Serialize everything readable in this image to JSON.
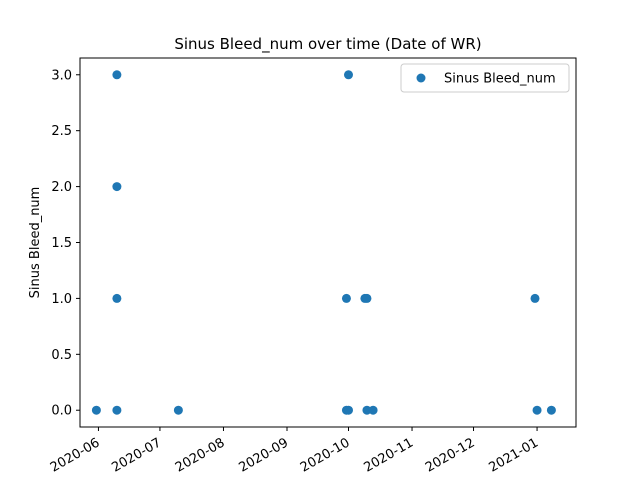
{
  "chart_data": {
    "type": "scatter",
    "title": "Sinus Bleed_num over time (Date of WR)",
    "xlabel": "",
    "ylabel": "Sinus Bleed_num",
    "x_axis_type": "date",
    "xlim": [
      "2020-05-23",
      "2021-01-20"
    ],
    "ylim": [
      -0.15,
      3.15
    ],
    "x_ticks": [
      "2020-06-01",
      "2020-07-01",
      "2020-08-01",
      "2020-09-01",
      "2020-10-01",
      "2020-11-01",
      "2020-12-01",
      "2021-01-01"
    ],
    "x_tick_labels": [
      "2020-06",
      "2020-07",
      "2020-08",
      "2020-09",
      "2020-10",
      "2020-11",
      "2020-12",
      "2021-01"
    ],
    "y_ticks": [
      0.0,
      0.5,
      1.0,
      1.5,
      2.0,
      2.5,
      3.0
    ],
    "y_tick_labels": [
      "0.0",
      "0.5",
      "1.0",
      "1.5",
      "2.0",
      "2.5",
      "3.0"
    ],
    "grid": false,
    "legend_position": "top-right",
    "color": "#1f77b4",
    "series": [
      {
        "name": "Sinus Bleed_num",
        "x": [
          "2020-05-31",
          "2020-06-10",
          "2020-06-10",
          "2020-06-10",
          "2020-06-10",
          "2020-07-10",
          "2020-09-30",
          "2020-09-30",
          "2020-10-01",
          "2020-10-01",
          "2020-10-09",
          "2020-10-10",
          "2020-10-10",
          "2020-10-13",
          "2020-12-31",
          "2021-01-01",
          "2021-01-08"
        ],
        "y": [
          0,
          0,
          1,
          2,
          3,
          0,
          0,
          1,
          0,
          3,
          1,
          1,
          0,
          0,
          1,
          0,
          0
        ]
      }
    ]
  }
}
